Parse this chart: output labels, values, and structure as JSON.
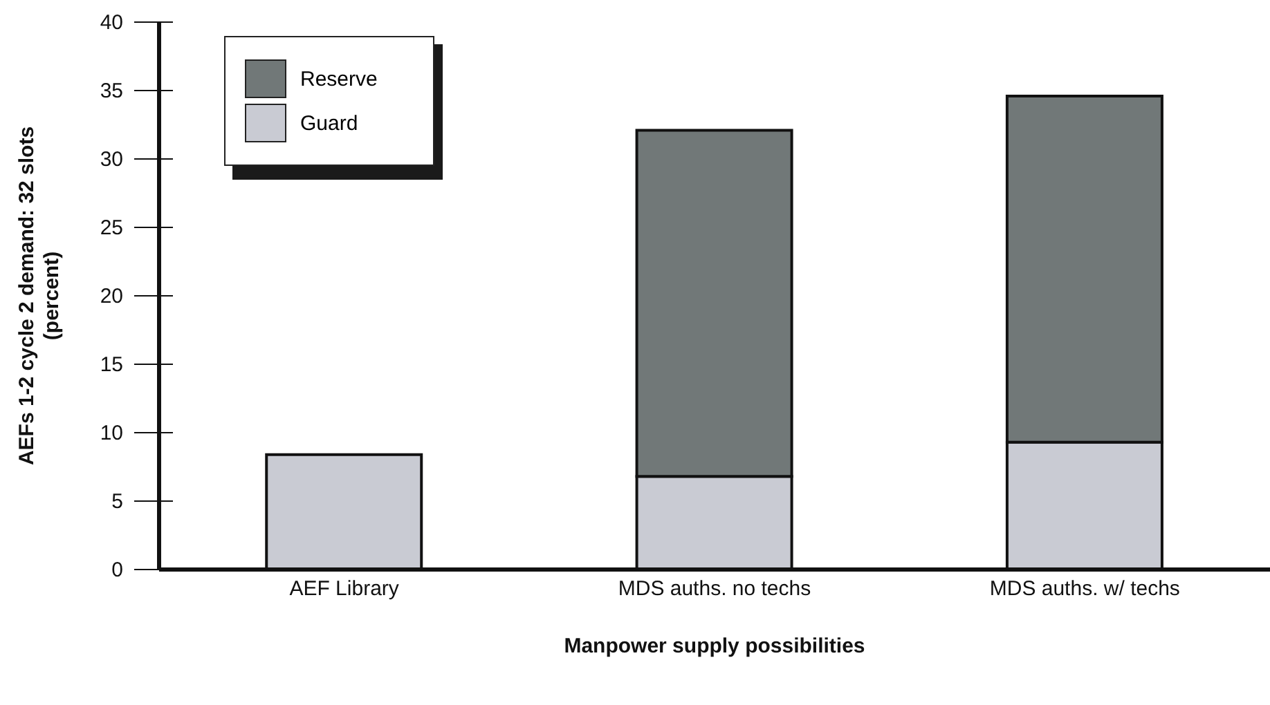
{
  "chart_data": {
    "type": "bar",
    "stacked": true,
    "xlabel": "Manpower supply possibilities",
    "ylabel": "AEFs 1-2 cycle 2 demand: 32 slots (percent)",
    "categories": [
      "AEF Library",
      "MDS auths. no techs",
      "MDS auths. w/ techs"
    ],
    "series": [
      {
        "name": "Guard",
        "color": "#c9cbd3",
        "values": [
          8.4,
          6.8,
          9.3
        ]
      },
      {
        "name": "Reserve",
        "color": "#717878",
        "values": [
          null,
          25.3,
          25.3
        ]
      }
    ],
    "ylim": [
      0,
      40
    ],
    "yticks": [
      0,
      5,
      10,
      15,
      20,
      25,
      30,
      35,
      40
    ],
    "grid": false,
    "legend": "top left"
  }
}
